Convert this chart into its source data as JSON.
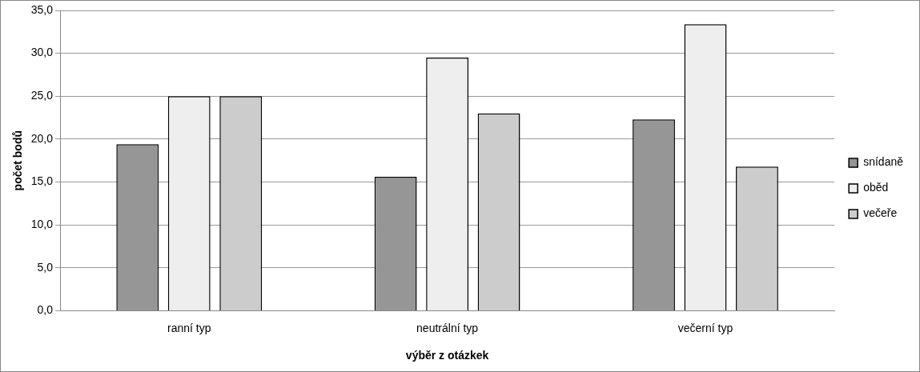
{
  "chart_data": {
    "type": "bar",
    "xlabel": "výběr z otázkek",
    "ylabel": "počet bodů",
    "categories": [
      "ranní typ",
      "neutrální typ",
      "večerní typ"
    ],
    "series": [
      {
        "name": "snídaně",
        "color": "#969696",
        "values": [
          19.4,
          15.6,
          22.3
        ]
      },
      {
        "name": "oběd",
        "color": "#eeeeee",
        "values": [
          25.0,
          29.5,
          33.4
        ]
      },
      {
        "name": "večeře",
        "color": "#cccccc",
        "values": [
          25.0,
          23.0,
          16.8
        ]
      }
    ],
    "ylim": [
      0,
      35
    ],
    "yticks": [
      {
        "value": 0,
        "label": "0,0"
      },
      {
        "value": 5,
        "label": "5,0"
      },
      {
        "value": 10,
        "label": "10,0"
      },
      {
        "value": 15,
        "label": "15,0"
      },
      {
        "value": 20,
        "label": "20,0"
      },
      {
        "value": 25,
        "label": "25,0"
      },
      {
        "value": 30,
        "label": "30,0"
      },
      {
        "value": 35,
        "label": "35,0"
      }
    ],
    "grid": "y",
    "legend": "right"
  }
}
